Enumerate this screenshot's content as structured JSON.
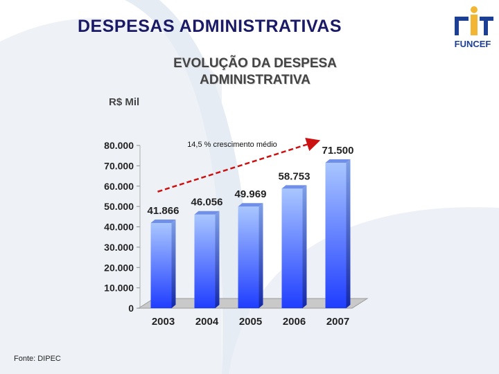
{
  "slide": {
    "title": "DESPESAS ADMINISTRATIVAS",
    "source": "Fonte: DIPEC"
  },
  "logo": {
    "text": "FUNCEF"
  },
  "colors": {
    "title": "#1a1a66",
    "bar_light": "#a9c6ff",
    "bar_dark": "#1f3dff",
    "trend_line": "#cc1111",
    "logo_yellow": "#f2b632",
    "logo_blue": "#1c3f94"
  },
  "chart_data": {
    "type": "bar",
    "title_lines": [
      "EVOLUÇÃO DA DESPESA",
      "ADMINISTRATIVA"
    ],
    "unit_label": "R$ Mil",
    "categories": [
      "2003",
      "2004",
      "2005",
      "2006",
      "2007"
    ],
    "values": [
      41866,
      46056,
      49969,
      58753,
      71500
    ],
    "value_labels": [
      "41.866",
      "46.056",
      "49.969",
      "58.753",
      "71.500"
    ],
    "y_ticks": [
      0,
      10000,
      20000,
      30000,
      40000,
      50000,
      60000,
      70000,
      80000
    ],
    "y_tick_labels": [
      "0",
      "10.000",
      "20.000",
      "30.000",
      "40.000",
      "50.000",
      "60.000",
      "70.000",
      "80.000"
    ],
    "ylim": [
      0,
      80000
    ],
    "annotation": "14,5 % crescimento médio",
    "trend_from": {
      "category": "2003",
      "value": 60000
    },
    "trend_to": {
      "category": "2007",
      "value": 80000
    }
  }
}
